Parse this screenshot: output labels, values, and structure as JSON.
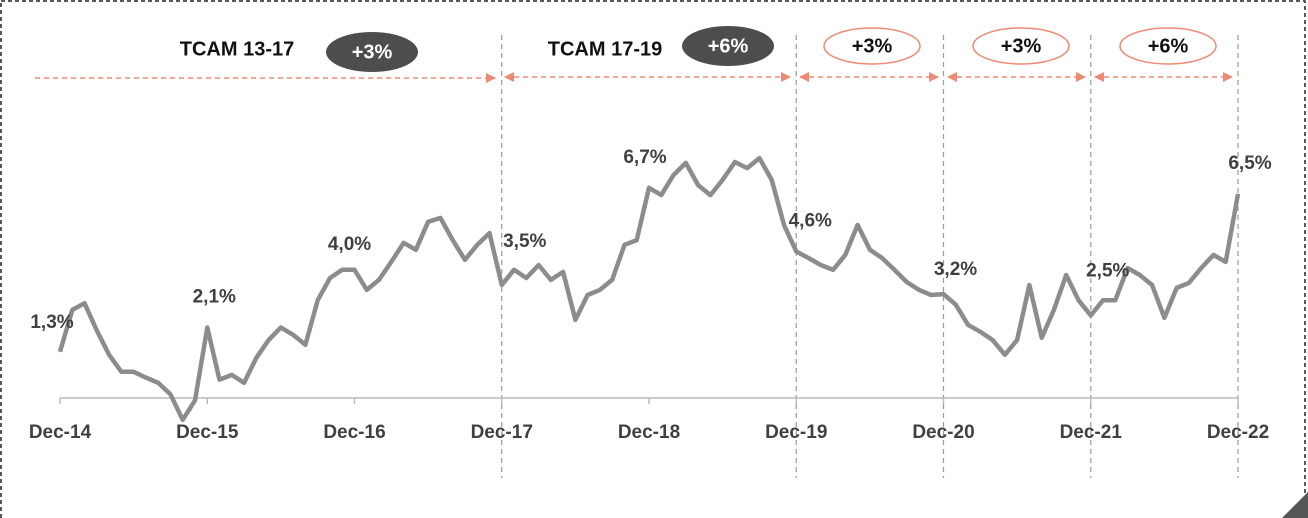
{
  "chart_data": {
    "type": "line",
    "categories": [
      "Dec-14",
      null,
      null,
      null,
      null,
      null,
      null,
      null,
      null,
      null,
      null,
      null,
      "Dec-15",
      null,
      null,
      null,
      null,
      null,
      null,
      null,
      null,
      null,
      null,
      null,
      "Dec-16",
      null,
      null,
      null,
      null,
      null,
      null,
      null,
      null,
      null,
      null,
      null,
      "Dec-17",
      null,
      null,
      null,
      null,
      null,
      null,
      null,
      null,
      null,
      null,
      null,
      "Dec-18",
      null,
      null,
      null,
      null,
      null,
      null,
      null,
      null,
      null,
      null,
      null,
      "Dec-19",
      null,
      null,
      null,
      null,
      null,
      null,
      null,
      null,
      null,
      null,
      null,
      "Dec-20",
      null,
      null,
      null,
      null,
      null,
      null,
      null,
      null,
      null,
      null,
      null,
      "Dec-21",
      null,
      null,
      null,
      null,
      null,
      null,
      null,
      null,
      null,
      null,
      null,
      "Dec-22"
    ],
    "values": [
      1.3,
      2.68,
      2.9,
      2.0,
      1.2,
      0.64,
      0.64,
      0.45,
      0.28,
      -0.1,
      -0.94,
      -0.3,
      2.1,
      0.38,
      0.54,
      0.28,
      1.1,
      1.69,
      2.1,
      1.86,
      1.53,
      3.0,
      3.73,
      4.0,
      4.0,
      3.34,
      3.67,
      4.26,
      4.89,
      4.66,
      5.58,
      5.71,
      4.98,
      4.33,
      4.82,
      5.21,
      3.5,
      4.0,
      3.73,
      4.16,
      3.67,
      3.93,
      2.35,
      3.17,
      3.34,
      3.67,
      4.82,
      4.98,
      6.7,
      6.46,
      7.12,
      7.52,
      6.79,
      6.46,
      6.96,
      7.55,
      7.35,
      7.68,
      6.96,
      5.48,
      4.6,
      4.39,
      4.16,
      4.0,
      4.49,
      5.48,
      4.66,
      4.39,
      4.0,
      3.6,
      3.34,
      3.17,
      3.2,
      2.85,
      2.19,
      1.96,
      1.69,
      1.2,
      1.69,
      3.5,
      1.76,
      2.68,
      3.83,
      3.0,
      2.5,
      3.0,
      3.0,
      4.06,
      3.83,
      3.5,
      2.42,
      3.4,
      3.57,
      4.06,
      4.49,
      4.26,
      6.5
    ],
    "value_labels": [
      "1,3%",
      null,
      null,
      null,
      null,
      null,
      null,
      null,
      null,
      null,
      null,
      null,
      "2,1%",
      null,
      null,
      null,
      null,
      null,
      null,
      null,
      null,
      null,
      null,
      null,
      "4,0%",
      null,
      null,
      null,
      null,
      null,
      null,
      null,
      null,
      null,
      null,
      null,
      "3,5%",
      null,
      null,
      null,
      null,
      null,
      null,
      null,
      null,
      null,
      null,
      null,
      "6,7%",
      null,
      null,
      null,
      null,
      null,
      null,
      null,
      null,
      null,
      null,
      null,
      "4,6%",
      null,
      null,
      null,
      null,
      null,
      null,
      null,
      null,
      null,
      null,
      null,
      "3,2%",
      null,
      null,
      null,
      null,
      null,
      null,
      null,
      null,
      null,
      null,
      null,
      "2,5%",
      null,
      null,
      null,
      null,
      null,
      null,
      null,
      null,
      null,
      null,
      null,
      "6,5%"
    ],
    "color": "#8c8c8c",
    "ylim": [
      -2,
      9
    ],
    "periods": [
      {
        "label": "TCAM 13-17",
        "rate": "+3%"
      },
      {
        "label": "TCAM 17-19",
        "rate": "+6%"
      },
      {
        "rate": "+3%"
      },
      {
        "rate": "+3%"
      },
      {
        "rate": "+6%"
      }
    ]
  }
}
